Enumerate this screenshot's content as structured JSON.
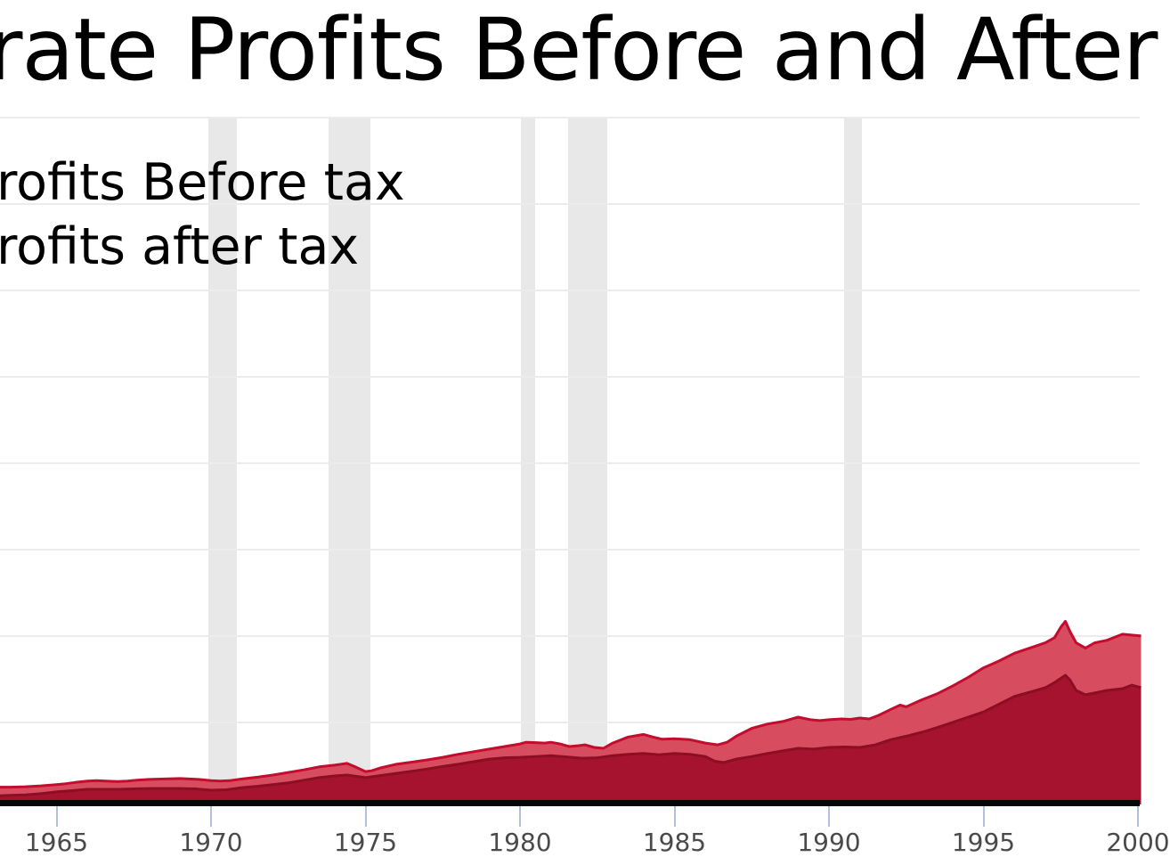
{
  "title": {
    "text": "rate Profits Before and After"
  },
  "legend": {
    "items": [
      {
        "label": "rofits Before tax"
      },
      {
        "label": "rofits after tax"
      }
    ]
  },
  "colors": {
    "background": "#ffffff",
    "title_text": "#000000",
    "legend_text": "#000000",
    "gridline": "#ececec",
    "recession_band": "#e8e8e8",
    "axis_line": "#070707",
    "tick_mark": "#b3c0db",
    "tick_label": "#4a4a4a",
    "before_tax_fill": "#d74d5f",
    "before_tax_stroke": "#c30c2e",
    "after_tax_fill": "#a6132e",
    "after_tax_stroke": "#8c0e23"
  },
  "chart_data": {
    "type": "area",
    "title": "rate Profits Before and After",
    "title_note_visible_fragment": "rate Profits Before and After",
    "xlabel": "",
    "ylabel": "",
    "grid": true,
    "legend_position": "upper-left",
    "x_visible_range": [
      1963.1,
      2000.1
    ],
    "y_axis": {
      "tick_labels_visible": false,
      "gridline_count": 8,
      "units_per_gridline": 100,
      "ylim": [
        0,
        795
      ]
    },
    "x_ticks": [
      {
        "year": 1965,
        "label": "1965"
      },
      {
        "year": 1970,
        "label": "1970"
      },
      {
        "year": 1975,
        "label": "1975"
      },
      {
        "year": 1980,
        "label": "1980"
      },
      {
        "year": 1985,
        "label": "1985"
      },
      {
        "year": 1990,
        "label": "1990"
      },
      {
        "year": 1995,
        "label": "1995"
      },
      {
        "year": 2000,
        "label": "2000"
      }
    ],
    "recession_bands": [
      [
        1969.91,
        1970.83
      ],
      [
        1973.8,
        1975.16
      ],
      [
        1980.03,
        1980.49
      ],
      [
        1981.56,
        1982.83
      ],
      [
        1990.49,
        1991.07
      ]
    ],
    "series": [
      {
        "name": "rofits Before tax",
        "fill": "#d74d5f",
        "stroke": "#c30c2e",
        "stroke_width": 3,
        "points": [
          [
            1963.1,
            20
          ],
          [
            1963.5,
            20
          ],
          [
            1964,
            20.5
          ],
          [
            1964.5,
            21.5
          ],
          [
            1965,
            23
          ],
          [
            1965.3,
            24
          ],
          [
            1965.6,
            25.5
          ],
          [
            1966,
            27
          ],
          [
            1966.3,
            27.5
          ],
          [
            1966.6,
            27
          ],
          [
            1967,
            26.5
          ],
          [
            1967.3,
            27
          ],
          [
            1967.6,
            28
          ],
          [
            1968,
            29
          ],
          [
            1968.5,
            29.5
          ],
          [
            1969,
            30
          ],
          [
            1969.3,
            29.5
          ],
          [
            1969.6,
            29
          ],
          [
            1970,
            27.5
          ],
          [
            1970.3,
            27
          ],
          [
            1970.6,
            27.5
          ],
          [
            1971,
            29.5
          ],
          [
            1971.5,
            31.5
          ],
          [
            1972,
            34
          ],
          [
            1972.5,
            37
          ],
          [
            1973,
            40
          ],
          [
            1973.5,
            43.5
          ],
          [
            1974,
            45.5
          ],
          [
            1974.4,
            47.5
          ],
          [
            1974.7,
            43
          ],
          [
            1975,
            38
          ],
          [
            1975.2,
            39
          ],
          [
            1975.5,
            42.5
          ],
          [
            1976,
            46.5
          ],
          [
            1976.5,
            49
          ],
          [
            1977,
            51.5
          ],
          [
            1977.5,
            54.5
          ],
          [
            1978,
            58
          ],
          [
            1978.5,
            61
          ],
          [
            1979,
            64
          ],
          [
            1979.5,
            67
          ],
          [
            1980,
            70
          ],
          [
            1980.2,
            72
          ],
          [
            1980.5,
            71.5
          ],
          [
            1980.8,
            71
          ],
          [
            1981,
            72
          ],
          [
            1981.3,
            70
          ],
          [
            1981.6,
            67
          ],
          [
            1981.9,
            68
          ],
          [
            1982.1,
            69
          ],
          [
            1982.4,
            66
          ],
          [
            1982.7,
            65
          ],
          [
            1983,
            71
          ],
          [
            1983.5,
            78
          ],
          [
            1984,
            81
          ],
          [
            1984.3,
            78
          ],
          [
            1984.6,
            75.5
          ],
          [
            1985,
            76
          ],
          [
            1985.5,
            75
          ],
          [
            1986,
            71
          ],
          [
            1986.4,
            69
          ],
          [
            1986.7,
            72
          ],
          [
            1987,
            79
          ],
          [
            1987.5,
            88
          ],
          [
            1988,
            93
          ],
          [
            1988.5,
            96
          ],
          [
            1989,
            101
          ],
          [
            1989.4,
            98
          ],
          [
            1989.7,
            97
          ],
          [
            1990,
            98
          ],
          [
            1990.4,
            99
          ],
          [
            1990.7,
            98.5
          ],
          [
            1991,
            100
          ],
          [
            1991.3,
            99
          ],
          [
            1991.6,
            103
          ],
          [
            1992,
            110
          ],
          [
            1992.3,
            115
          ],
          [
            1992.5,
            113
          ],
          [
            1993,
            121
          ],
          [
            1993.5,
            128
          ],
          [
            1994,
            137
          ],
          [
            1994.5,
            147
          ],
          [
            1995,
            158
          ],
          [
            1995.5,
            166
          ],
          [
            1996,
            175
          ],
          [
            1996.5,
            181
          ],
          [
            1997,
            187
          ],
          [
            1997.3,
            193
          ],
          [
            1997.5,
            205
          ],
          [
            1997.65,
            212
          ],
          [
            1997.8,
            200
          ],
          [
            1998,
            187
          ],
          [
            1998.3,
            181
          ],
          [
            1998.6,
            187
          ],
          [
            1999,
            190
          ],
          [
            1999.5,
            197
          ],
          [
            1999.8,
            196
          ],
          [
            2000.1,
            195
          ]
        ]
      },
      {
        "name": "rofits after tax",
        "fill": "#a6132e",
        "stroke": "#8c0e23",
        "stroke_width": 3,
        "points": [
          [
            1963.1,
            10
          ],
          [
            1963.5,
            10.5
          ],
          [
            1964,
            11
          ],
          [
            1964.5,
            12.5
          ],
          [
            1965,
            14.5
          ],
          [
            1965.5,
            16
          ],
          [
            1966,
            17.5
          ],
          [
            1966.5,
            17.5
          ],
          [
            1967,
            17.5
          ],
          [
            1967.5,
            18
          ],
          [
            1968,
            18.5
          ],
          [
            1968.5,
            18.5
          ],
          [
            1969,
            18.5
          ],
          [
            1969.5,
            18
          ],
          [
            1970,
            16.5
          ],
          [
            1970.5,
            17
          ],
          [
            1971,
            19.5
          ],
          [
            1971.5,
            21
          ],
          [
            1972,
            23
          ],
          [
            1972.5,
            25
          ],
          [
            1973,
            28
          ],
          [
            1973.5,
            31
          ],
          [
            1974,
            33
          ],
          [
            1974.4,
            34
          ],
          [
            1975,
            31
          ],
          [
            1975.5,
            33.5
          ],
          [
            1976,
            36
          ],
          [
            1976.5,
            38.5
          ],
          [
            1977,
            41
          ],
          [
            1977.5,
            44
          ],
          [
            1978,
            46.5
          ],
          [
            1978.5,
            49.5
          ],
          [
            1979,
            52.5
          ],
          [
            1979.5,
            54
          ],
          [
            1980,
            54.5
          ],
          [
            1980.5,
            55.5
          ],
          [
            1981,
            56.5
          ],
          [
            1981.5,
            55
          ],
          [
            1982,
            53.5
          ],
          [
            1982.5,
            54
          ],
          [
            1983,
            56.5
          ],
          [
            1983.5,
            58
          ],
          [
            1984,
            59
          ],
          [
            1984.5,
            57.5
          ],
          [
            1985,
            59
          ],
          [
            1985.5,
            58
          ],
          [
            1986,
            55.5
          ],
          [
            1986.3,
            50
          ],
          [
            1986.6,
            48.5
          ],
          [
            1987,
            52.5
          ],
          [
            1987.5,
            55.5
          ],
          [
            1988,
            59
          ],
          [
            1988.5,
            62
          ],
          [
            1989,
            65
          ],
          [
            1989.5,
            64
          ],
          [
            1990,
            66
          ],
          [
            1990.5,
            66.5
          ],
          [
            1991,
            66
          ],
          [
            1991.5,
            69
          ],
          [
            1992,
            75
          ],
          [
            1992.5,
            79
          ],
          [
            1993,
            83.5
          ],
          [
            1993.5,
            89
          ],
          [
            1994,
            95
          ],
          [
            1994.5,
            101
          ],
          [
            1995,
            107
          ],
          [
            1995.5,
            116
          ],
          [
            1996,
            125
          ],
          [
            1996.5,
            130
          ],
          [
            1997,
            135
          ],
          [
            1997.3,
            141
          ],
          [
            1997.65,
            149.5
          ],
          [
            1997.8,
            144
          ],
          [
            1998,
            132
          ],
          [
            1998.3,
            127
          ],
          [
            1998.6,
            129
          ],
          [
            1999,
            132
          ],
          [
            1999.5,
            134
          ],
          [
            1999.8,
            138
          ],
          [
            2000.1,
            135
          ]
        ]
      }
    ]
  }
}
